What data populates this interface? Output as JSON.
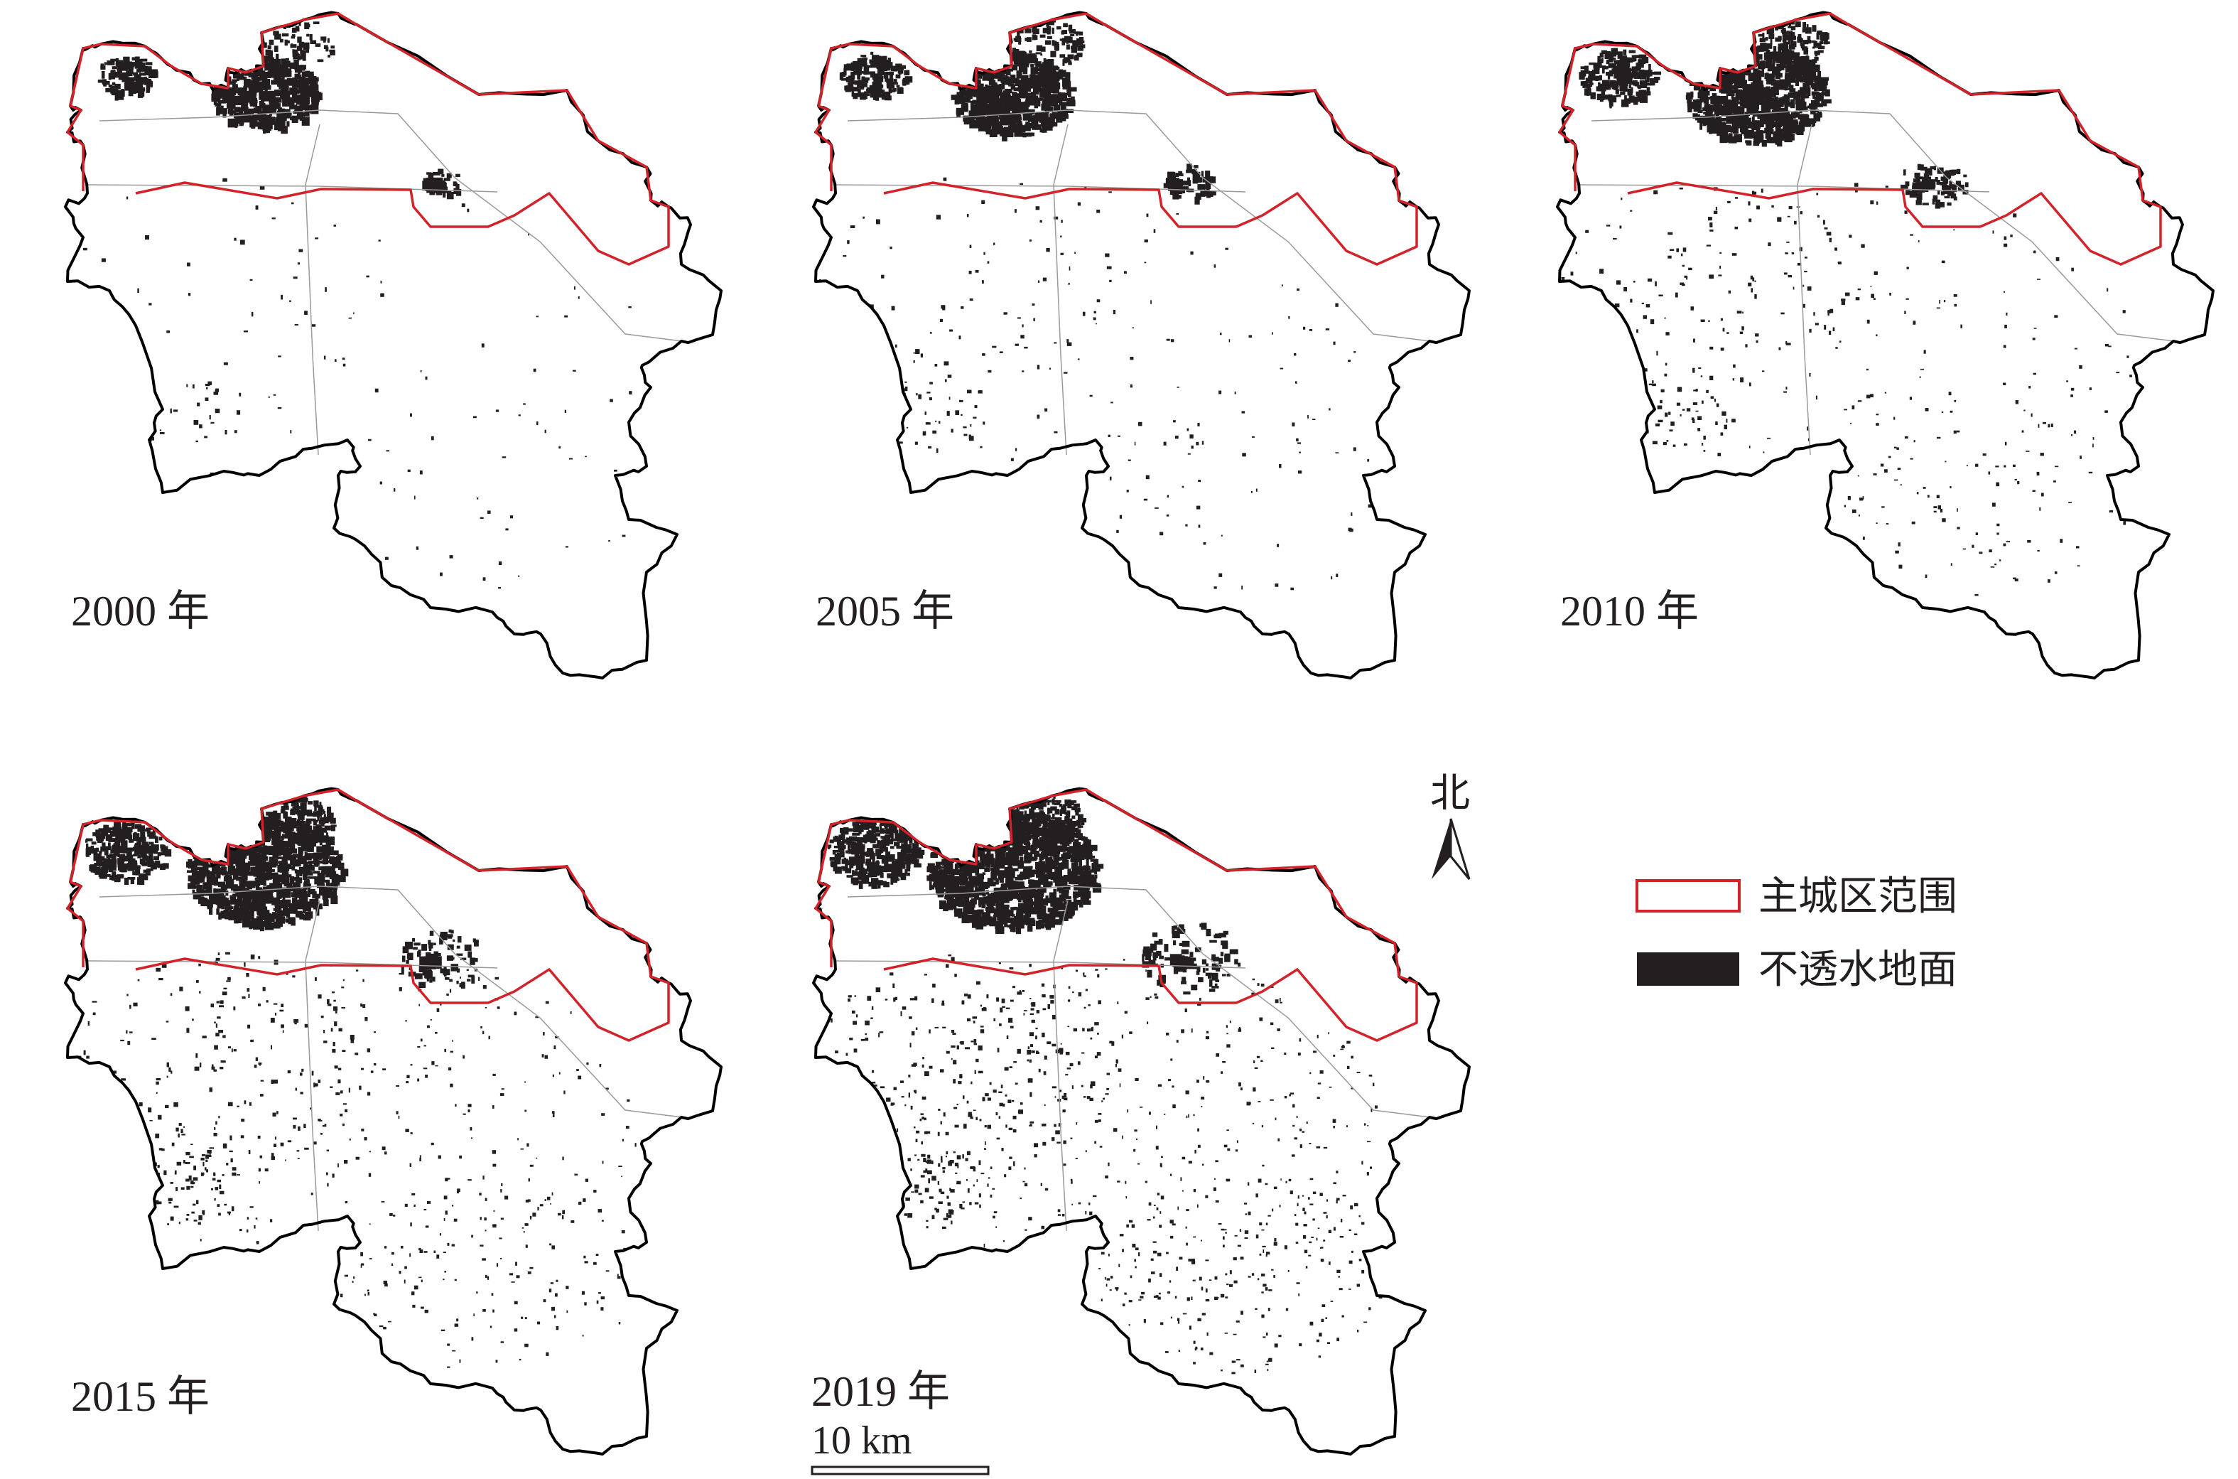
{
  "panels": [
    {
      "label": "2000 年"
    },
    {
      "label": "2005 年"
    },
    {
      "label": "2010 年"
    },
    {
      "label": "2015 年"
    },
    {
      "label": "2019 年"
    }
  ],
  "north_arrow": {
    "label": "北",
    "icon": "north-arrow-icon"
  },
  "scale_bar": {
    "label": "10 km"
  },
  "legend": {
    "items": [
      {
        "label": "主城区范围",
        "swatch": "outline",
        "color": "#d2232a"
      },
      {
        "label": "不透水地面",
        "swatch": "fill",
        "color": "#231f20"
      }
    ]
  },
  "colors": {
    "boundary": "#000000",
    "main_city": "#d2232a",
    "impervious": "#231f20",
    "roads": "#9a9a9a"
  }
}
